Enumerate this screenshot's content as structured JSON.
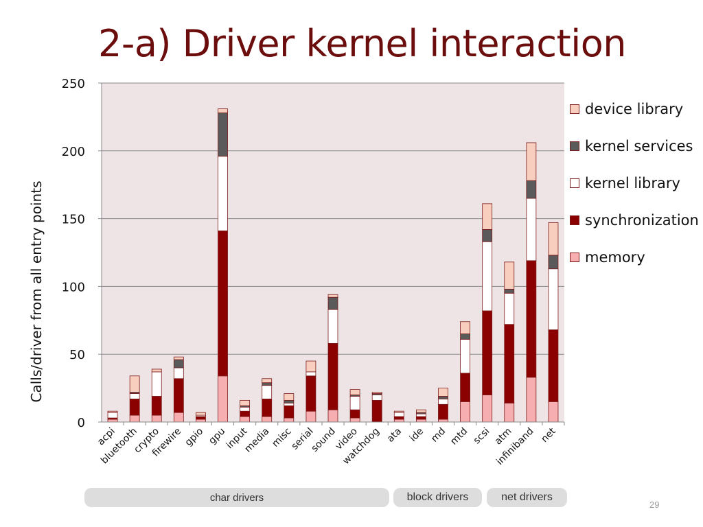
{
  "slide": {
    "title": "2-a) Driver kernel interaction",
    "page_number": "29"
  },
  "groups": [
    {
      "label": "char drivers"
    },
    {
      "label": "block drivers"
    },
    {
      "label": "net drivers"
    }
  ],
  "colors": {
    "memory": "#f6aeb0",
    "synchronization": "#8b0000",
    "kernel library": "#ffffff",
    "kernel services": "#5a5a5a",
    "device library": "#f8cfbf",
    "plot_background": "#efe4e5",
    "gridline": "#888888",
    "bar_outline": "#7a1a1a"
  },
  "chart_data": {
    "type": "bar",
    "stacked": true,
    "title": "",
    "xlabel": "",
    "ylabel": "Calls/driver from all  entry points",
    "ylim": [
      0,
      250
    ],
    "yticks": [
      0,
      50,
      100,
      150,
      200,
      250
    ],
    "grid": true,
    "legend_position": "right",
    "categories": [
      "acpi",
      "bluetooth",
      "crypto",
      "firewire",
      "gpio",
      "gpu",
      "input",
      "media",
      "misc",
      "serial",
      "sound",
      "video",
      "watchdog",
      "ata",
      "ide",
      "md",
      "mtd",
      "scsi",
      "atm",
      "infiniband",
      "net"
    ],
    "series": [
      {
        "name": "memory",
        "values": [
          2,
          5,
          5,
          7,
          2,
          34,
          4,
          4,
          3,
          8,
          9,
          3,
          0,
          2,
          2,
          2,
          15,
          20,
          14,
          33,
          15
        ]
      },
      {
        "name": "synchronization",
        "values": [
          1,
          12,
          14,
          25,
          2,
          107,
          4,
          13,
          9,
          26,
          49,
          6,
          16,
          2,
          2,
          11,
          21,
          62,
          58,
          86,
          53
        ]
      },
      {
        "name": "kernel library",
        "values": [
          4,
          4,
          18,
          8,
          1,
          55,
          3,
          10,
          2,
          3,
          25,
          10,
          4,
          3,
          2,
          4,
          25,
          51,
          23,
          46,
          45
        ]
      },
      {
        "name": "kernel services",
        "values": [
          0,
          1,
          0,
          6,
          0,
          32,
          1,
          2,
          2,
          0,
          9,
          1,
          1,
          0,
          1,
          2,
          4,
          9,
          3,
          13,
          10
        ]
      },
      {
        "name": "device library",
        "values": [
          1,
          12,
          2,
          2,
          2,
          3,
          4,
          3,
          5,
          8,
          2,
          4,
          1,
          1,
          2,
          6,
          9,
          19,
          20,
          28,
          24
        ]
      }
    ],
    "legend_order": [
      "device library",
      "kernel services",
      "kernel library",
      "synchronization",
      "memory"
    ]
  }
}
